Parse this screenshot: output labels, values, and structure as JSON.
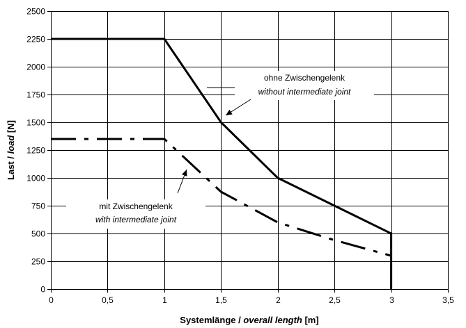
{
  "chart_data": {
    "type": "line",
    "title": "",
    "xlabel": {
      "prefix": "Systemlänge / ",
      "italic": "overall length",
      "suffix": " [m]"
    },
    "ylabel": {
      "prefix": "Last / ",
      "italic": "load",
      "suffix": " [N]"
    },
    "xlim": [
      0,
      3.5
    ],
    "ylim": [
      0,
      2500
    ],
    "x_ticks": [
      "0",
      "0,5",
      "1",
      "1,5",
      "2",
      "2,5",
      "3",
      "3,5"
    ],
    "y_ticks": [
      "0",
      "250",
      "500",
      "750",
      "1000",
      "1250",
      "1500",
      "1750",
      "2000",
      "2250",
      "2500"
    ],
    "grid": true,
    "series": [
      {
        "style": "solid",
        "x": [
          0,
          1,
          1.5,
          2,
          2.5,
          3,
          3
        ],
        "y": [
          2250,
          2250,
          1500,
          1000,
          750,
          500,
          0
        ]
      },
      {
        "style": "dash-dot",
        "x": [
          0,
          1,
          1.5,
          2,
          2.5,
          3
        ],
        "y": [
          1350,
          1350,
          875,
          600,
          440,
          300
        ]
      }
    ],
    "annotations": [
      {
        "text": "ohne Zwischengelenk",
        "italic": "without intermediate joint",
        "points_to": [
          1.55,
          1560
        ]
      },
      {
        "text": "mit Zwischengelenk",
        "italic": "with intermediate joint",
        "points_to": [
          1.2,
          1075
        ]
      }
    ]
  }
}
